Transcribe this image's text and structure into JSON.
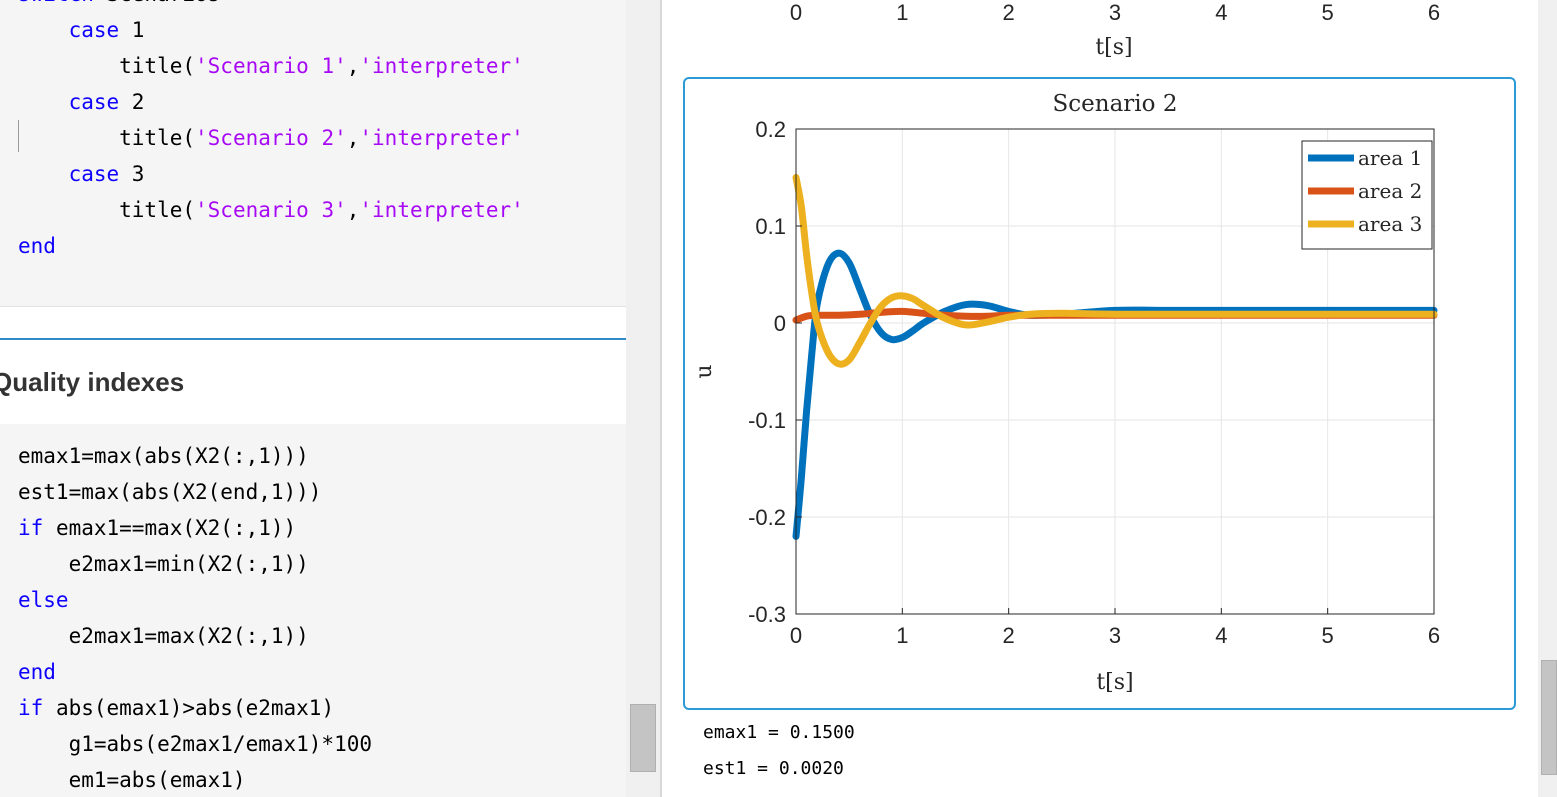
{
  "code_top": {
    "lines": [
      {
        "parts": [
          {
            "t": "switch",
            "c": "kw"
          },
          {
            "t": " Scenarios",
            "c": ""
          }
        ]
      },
      {
        "parts": [
          {
            "t": "    ",
            "c": ""
          },
          {
            "t": "case",
            "c": "kw"
          },
          {
            "t": " 1",
            "c": ""
          }
        ]
      },
      {
        "parts": [
          {
            "t": "        title(",
            "c": ""
          },
          {
            "t": "'Scenario 1'",
            "c": "str"
          },
          {
            "t": ",",
            "c": ""
          },
          {
            "t": "'interpreter'",
            "c": "str"
          }
        ]
      },
      {
        "parts": [
          {
            "t": "    ",
            "c": ""
          },
          {
            "t": "case",
            "c": "kw"
          },
          {
            "t": " 2",
            "c": ""
          }
        ]
      },
      {
        "parts": [
          {
            "t": "        title(",
            "c": ""
          },
          {
            "t": "'Scenario 2'",
            "c": "str"
          },
          {
            "t": ",",
            "c": ""
          },
          {
            "t": "'interpreter'",
            "c": "str"
          }
        ]
      },
      {
        "parts": [
          {
            "t": "    ",
            "c": ""
          },
          {
            "t": "case",
            "c": "kw"
          },
          {
            "t": " 3",
            "c": ""
          }
        ]
      },
      {
        "parts": [
          {
            "t": "        title(",
            "c": ""
          },
          {
            "t": "'Scenario 3'",
            "c": "str"
          },
          {
            "t": ",",
            "c": ""
          },
          {
            "t": "'interpreter'",
            "c": "str"
          }
        ]
      },
      {
        "parts": [
          {
            "t": "end",
            "c": "kw"
          }
        ]
      }
    ]
  },
  "section": {
    "title": "Quality indexes"
  },
  "code_bottom": {
    "lines": [
      {
        "parts": [
          {
            "t": "emax1=max(abs(X2(:,1)))",
            "c": ""
          }
        ]
      },
      {
        "parts": [
          {
            "t": "est1=max(abs(X2(end,1)))",
            "c": ""
          }
        ]
      },
      {
        "parts": [
          {
            "t": "if",
            "c": "kw"
          },
          {
            "t": " emax1==max(X2(:,1))",
            "c": ""
          }
        ]
      },
      {
        "parts": [
          {
            "t": "    e2max1=min(X2(:,1))",
            "c": ""
          }
        ]
      },
      {
        "parts": [
          {
            "t": "else",
            "c": "kw"
          }
        ]
      },
      {
        "parts": [
          {
            "t": "    e2max1=max(X2(:,1))",
            "c": ""
          }
        ]
      },
      {
        "parts": [
          {
            "t": "end",
            "c": "kw"
          }
        ]
      },
      {
        "parts": [
          {
            "t": "if",
            "c": "kw"
          },
          {
            "t": " abs(emax1)>abs(e2max1)",
            "c": ""
          }
        ]
      },
      {
        "parts": [
          {
            "t": "    g1=abs(e2max1/emax1)*100",
            "c": ""
          }
        ]
      },
      {
        "parts": [
          {
            "t": "    em1=abs(emax1)",
            "c": ""
          }
        ]
      }
    ]
  },
  "output": {
    "line1": "emax1 = 0.1500",
    "line2": "est1 = 0.0020"
  },
  "prev_axis": {
    "ticks": [
      "0",
      "1",
      "2",
      "3",
      "4",
      "5",
      "6"
    ],
    "xlabel": "t[s]"
  },
  "chart_data": {
    "type": "line",
    "title": "Scenario 2",
    "xlabel": "t[s]",
    "ylabel": "u",
    "xlim": [
      0,
      6
    ],
    "ylim": [
      -0.3,
      0.2
    ],
    "xticks": [
      0,
      1,
      2,
      3,
      4,
      5,
      6
    ],
    "yticks": [
      0.2,
      0.1,
      0,
      -0.1,
      -0.2,
      -0.3
    ],
    "ytick_labels": [
      "0.2",
      "0.1",
      "0",
      "-0.1",
      "-0.2",
      "-0.3"
    ],
    "grid": true,
    "legend_position": "top-right",
    "series": [
      {
        "name": "area 1",
        "color": "#0072bd",
        "x": [
          0,
          0.05,
          0.1,
          0.15,
          0.2,
          0.3,
          0.4,
          0.5,
          0.6,
          0.7,
          0.8,
          0.9,
          1.0,
          1.1,
          1.2,
          1.4,
          1.6,
          1.8,
          2.0,
          2.2,
          2.5,
          3.0,
          3.5,
          4.0,
          5.0,
          6.0
        ],
        "y": [
          -0.22,
          -0.16,
          -0.09,
          -0.03,
          0.02,
          0.06,
          0.072,
          0.062,
          0.035,
          0.008,
          -0.01,
          -0.017,
          -0.015,
          -0.008,
          0.0,
          0.012,
          0.019,
          0.018,
          0.012,
          0.008,
          0.009,
          0.013,
          0.013,
          0.013,
          0.013,
          0.013
        ]
      },
      {
        "name": "area 2",
        "color": "#d95319",
        "x": [
          0,
          0.1,
          0.2,
          0.4,
          0.6,
          0.8,
          1.0,
          1.2,
          1.4,
          1.6,
          1.8,
          2.0,
          2.5,
          3.0,
          4.0,
          5.0,
          6.0
        ],
        "y": [
          0.003,
          0.007,
          0.008,
          0.008,
          0.009,
          0.011,
          0.012,
          0.01,
          0.008,
          0.007,
          0.007,
          0.008,
          0.008,
          0.008,
          0.008,
          0.008,
          0.008
        ]
      },
      {
        "name": "area 3",
        "color": "#edb120",
        "x": [
          0,
          0.05,
          0.1,
          0.15,
          0.2,
          0.3,
          0.4,
          0.5,
          0.6,
          0.7,
          0.8,
          0.9,
          1.0,
          1.1,
          1.2,
          1.4,
          1.6,
          1.8,
          2.0,
          2.2,
          2.5,
          3.0,
          4.0,
          5.0,
          6.0
        ],
        "y": [
          0.15,
          0.12,
          0.07,
          0.03,
          0.0,
          -0.03,
          -0.042,
          -0.038,
          -0.02,
          0.0,
          0.017,
          0.026,
          0.028,
          0.025,
          0.018,
          0.005,
          -0.002,
          0.001,
          0.006,
          0.009,
          0.01,
          0.009,
          0.009,
          0.009,
          0.009
        ]
      }
    ]
  }
}
